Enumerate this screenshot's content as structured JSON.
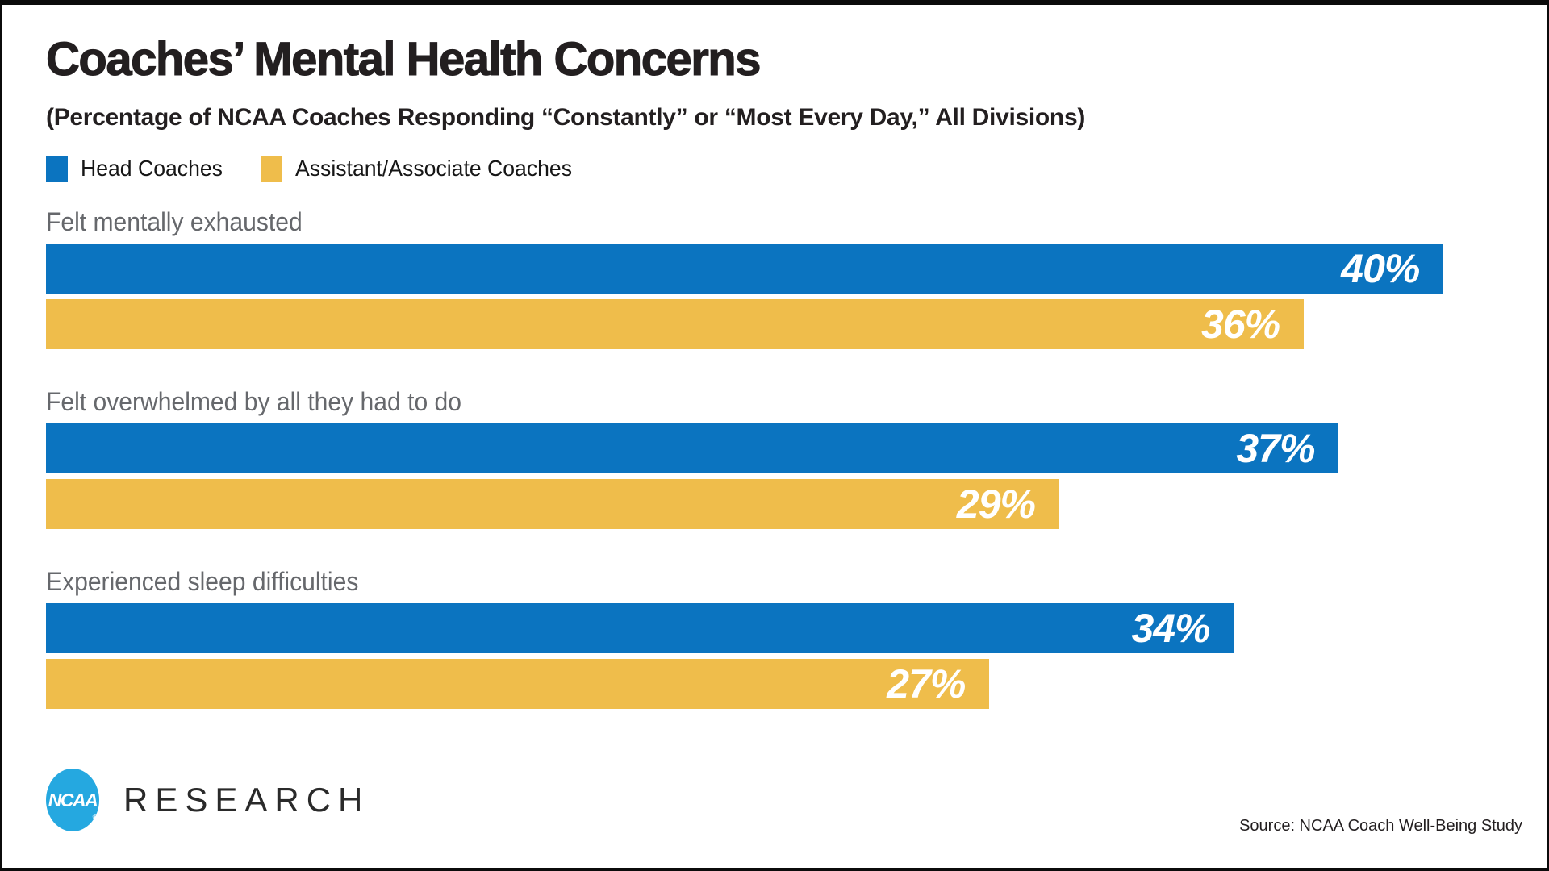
{
  "title": "Coaches’ Mental Health Concerns",
  "subtitle": "(Percentage of NCAA Coaches Responding “Constantly” or “Most Every Day,” All Divisions)",
  "colors": {
    "head_coaches_blue": "#0b74c0",
    "assistant_coaches_yellow": "#efbd4b",
    "logo_blue": "#25a8e0",
    "title_black": "#231f20",
    "category_gray": "#66686c"
  },
  "legend": {
    "items": [
      {
        "label": "Head Coaches",
        "color": "#0b74c0"
      },
      {
        "label": "Assistant/Associate Coaches",
        "color": "#efbd4b"
      }
    ]
  },
  "chart_data": {
    "type": "bar",
    "orientation": "horizontal",
    "title": "Coaches’ Mental Health Concerns",
    "subtitle": "(Percentage of NCAA Coaches Responding “Constantly” or “Most Every Day,” All Divisions)",
    "categories": [
      "Felt mentally exhausted",
      "Felt overwhelmed by all they had to do",
      "Experienced sleep difficulties"
    ],
    "series": [
      {
        "name": "Head Coaches",
        "color": "#0b74c0",
        "values": [
          40,
          37,
          34
        ]
      },
      {
        "name": "Assistant/Associate Coaches",
        "color": "#efbd4b",
        "values": [
          36,
          29,
          27
        ]
      }
    ],
    "value_suffix": "%",
    "data_labels": [
      "40%",
      "36%",
      "37%",
      "29%",
      "34%",
      "27%"
    ],
    "xlim": [
      0,
      41.7
    ],
    "grid": false,
    "legend_position": "top-left"
  },
  "footer": {
    "logo_text": "NCAA",
    "registered_mark": "®",
    "brand": "RESEARCH",
    "source": "Source: NCAA Coach Well-Being Study"
  }
}
